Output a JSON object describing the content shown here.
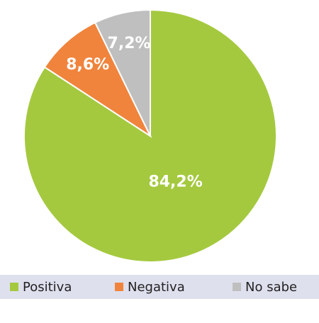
{
  "chart_data": {
    "type": "pie",
    "categories": [
      "Positiva",
      "Negativa",
      "No sabe"
    ],
    "values": [
      84.2,
      8.6,
      7.2
    ],
    "value_labels": [
      "84,2%",
      "8,6%",
      "7,2%"
    ],
    "colors": [
      "#a4c93f",
      "#f0843c",
      "#bfbfbf"
    ]
  }
}
